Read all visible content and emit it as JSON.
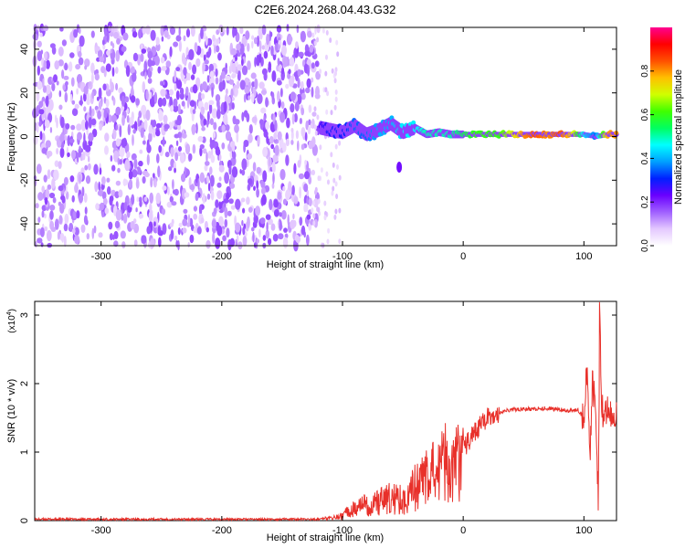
{
  "title": "C2E6.2024.268.04.43.G32",
  "chart_data": [
    {
      "type": "heatmap",
      "xlabel": "Height of straight line (km)",
      "ylabel": "Frequency (Hz)",
      "xlim": [
        -355,
        127
      ],
      "ylim": [
        -50,
        50
      ],
      "xticks": [
        -300,
        -200,
        -100,
        0,
        100
      ],
      "yticks": [
        -40,
        -20,
        0,
        20,
        40
      ],
      "noise_region_x": [
        -355,
        -120
      ],
      "signal_trace": [
        {
          "x": -118,
          "y": 4,
          "amp": 0.25
        },
        {
          "x": -110,
          "y": 3,
          "amp": 0.3
        },
        {
          "x": -100,
          "y": 2,
          "amp": 0.3
        },
        {
          "x": -90,
          "y": 5,
          "amp": 0.35
        },
        {
          "x": -80,
          "y": 1,
          "amp": 0.35
        },
        {
          "x": -70,
          "y": 3,
          "amp": 0.4
        },
        {
          "x": -60,
          "y": 6,
          "amp": 0.4
        },
        {
          "x": -50,
          "y": 2,
          "amp": 0.45
        },
        {
          "x": -40,
          "y": 4,
          "amp": 0.45
        },
        {
          "x": -30,
          "y": 1,
          "amp": 0.5
        },
        {
          "x": -20,
          "y": 2,
          "amp": 0.5
        },
        {
          "x": -10,
          "y": 1,
          "amp": 0.5
        },
        {
          "x": 0,
          "y": 1,
          "amp": 0.55
        },
        {
          "x": 10,
          "y": 1,
          "amp": 0.6
        },
        {
          "x": 20,
          "y": 1,
          "amp": 0.6
        },
        {
          "x": 30,
          "y": 1,
          "amp": 0.6
        },
        {
          "x": 40,
          "y": 1,
          "amp": 0.7
        },
        {
          "x": 50,
          "y": 1,
          "amp": 0.8
        },
        {
          "x": 60,
          "y": 1,
          "amp": 0.85
        },
        {
          "x": 70,
          "y": 1,
          "amp": 0.8
        },
        {
          "x": 80,
          "y": 1,
          "amp": 0.85
        },
        {
          "x": 90,
          "y": 1,
          "amp": 0.75
        },
        {
          "x": 100,
          "y": 1,
          "amp": 0.45
        },
        {
          "x": 110,
          "y": 0,
          "amp": 0.35
        },
        {
          "x": 120,
          "y": 1,
          "amp": 0.8
        },
        {
          "x": 127,
          "y": 1,
          "amp": 0.8
        }
      ],
      "colorbar": {
        "label": "Normalized spectral amplitude",
        "range": [
          0,
          1
        ],
        "ticks": [
          "0.0",
          "0.2",
          "0.4",
          "0.6",
          "0.8"
        ],
        "colors": [
          "#ffffff",
          "#e4c8ff",
          "#a060ff",
          "#6a00ff",
          "#0020ff",
          "#00a0ff",
          "#00ffff",
          "#00ff60",
          "#40ff00",
          "#d0ff00",
          "#ffc000",
          "#ff5000",
          "#ff0000",
          "#ff0090"
        ]
      }
    },
    {
      "type": "line",
      "xlabel": "Height of straight line (km)",
      "ylabel": "SNR (10 * v/v)",
      "yscale_label": "(x10",
      "yscale_exp": "4",
      "yscale_close": ")",
      "xlim": [
        -355,
        127
      ],
      "ylim": [
        0,
        3.2
      ],
      "xticks": [
        -300,
        -200,
        -100,
        0,
        100
      ],
      "yticks": [
        0,
        1,
        2,
        3
      ],
      "color": "#e8302a",
      "series": [
        {
          "x": [
            -355,
            -120,
            -100,
            -90,
            -80,
            -70,
            -60,
            -50,
            -40,
            -30,
            -20,
            -10,
            0,
            10,
            20,
            30,
            40,
            50,
            60,
            70,
            80,
            90,
            95,
            100,
            103,
            105,
            107,
            110,
            112,
            113,
            115,
            120,
            127
          ],
          "y": [
            0.02,
            0.02,
            0.1,
            0.25,
            0.3,
            0.35,
            0.45,
            0.4,
            0.65,
            0.8,
            1.0,
            1.2,
            1.05,
            1.3,
            1.5,
            1.58,
            1.62,
            1.63,
            1.63,
            1.64,
            1.62,
            1.6,
            1.62,
            1.5,
            2.3,
            0.9,
            2.0,
            1.6,
            0.15,
            3.15,
            1.6,
            1.58,
            1.58
          ]
        }
      ]
    }
  ]
}
